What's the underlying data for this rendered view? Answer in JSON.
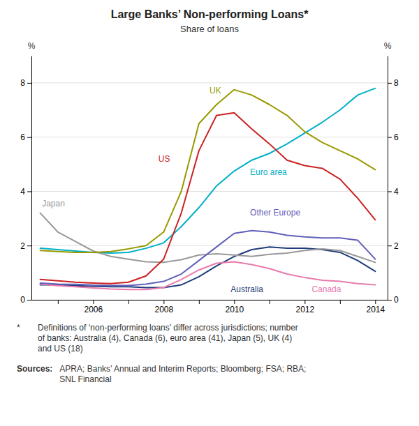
{
  "chart_data": {
    "type": "line",
    "title": "Large Banks’ Non-performing Loans*",
    "subtitle": "Share of loans",
    "ylabel": "%",
    "y2label": "%",
    "x": [
      2004.5,
      2005.0,
      2005.5,
      2006.0,
      2006.5,
      2007.0,
      2007.5,
      2008.0,
      2008.5,
      2009.0,
      2009.5,
      2010.0,
      2010.5,
      2011.0,
      2011.5,
      2012.0,
      2012.5,
      2013.0,
      2013.5,
      2014.0
    ],
    "xlim": [
      2004.25,
      2014.35
    ],
    "xticks": [
      {
        "value": 2005,
        "label": null
      },
      2006,
      {
        "value": 2007,
        "label": null
      },
      2008,
      {
        "value": 2009,
        "label": null
      },
      2010,
      {
        "value": 2011,
        "label": null
      },
      2012,
      {
        "value": 2013,
        "label": null
      },
      2014
    ],
    "ylim": [
      0,
      9
    ],
    "yticks": [
      0,
      2,
      4,
      6,
      8
    ],
    "y2lim": [
      0,
      9
    ],
    "y2ticks": [
      0,
      2,
      4,
      6,
      8
    ],
    "grid": true,
    "series": [
      {
        "name": "Australia",
        "color": "#1f3d7a",
        "values": [
          0.55,
          0.55,
          0.52,
          0.5,
          0.48,
          0.48,
          0.45,
          0.45,
          0.55,
          0.85,
          1.25,
          1.6,
          1.85,
          1.95,
          1.9,
          1.9,
          1.85,
          1.75,
          1.45,
          1.05
        ]
      },
      {
        "name": "Canada",
        "color": "#e87aad",
        "values": [
          0.58,
          0.52,
          0.48,
          0.44,
          0.4,
          0.38,
          0.38,
          0.45,
          0.75,
          1.1,
          1.35,
          1.4,
          1.3,
          1.15,
          0.95,
          0.82,
          0.72,
          0.68,
          0.6,
          0.55
        ]
      },
      {
        "name": "Euro area",
        "color": "#00b0c8",
        "values": [
          1.9,
          1.85,
          1.8,
          1.75,
          1.72,
          1.75,
          1.9,
          2.1,
          2.7,
          3.4,
          4.2,
          4.75,
          5.15,
          5.4,
          5.75,
          6.15,
          6.55,
          7.0,
          7.55,
          7.8
        ]
      },
      {
        "name": "Japan",
        "color": "#999999",
        "values": [
          3.2,
          2.5,
          2.15,
          1.8,
          1.6,
          1.5,
          1.4,
          1.38,
          1.48,
          1.65,
          1.7,
          1.65,
          1.6,
          1.68,
          1.72,
          1.82,
          1.88,
          1.82,
          1.6,
          1.38
        ]
      },
      {
        "name": "Other Europe",
        "color": "#6060bb",
        "values": [
          0.62,
          0.58,
          0.57,
          0.54,
          0.53,
          0.53,
          0.58,
          0.68,
          0.95,
          1.45,
          1.95,
          2.45,
          2.55,
          2.5,
          2.38,
          2.32,
          2.28,
          2.28,
          2.2,
          1.5
        ]
      },
      {
        "name": "UK",
        "color": "#999900",
        "values": [
          1.82,
          1.78,
          1.75,
          1.75,
          1.78,
          1.88,
          2.0,
          2.5,
          4.0,
          6.5,
          7.2,
          7.75,
          7.55,
          7.2,
          6.8,
          6.2,
          5.8,
          5.5,
          5.2,
          4.8
        ]
      },
      {
        "name": "US",
        "color": "#cc2222",
        "values": [
          0.75,
          0.7,
          0.65,
          0.62,
          0.6,
          0.65,
          0.88,
          1.5,
          3.2,
          5.5,
          6.8,
          6.9,
          6.3,
          5.75,
          5.15,
          4.95,
          4.85,
          4.45,
          3.75,
          2.95
        ]
      }
    ],
    "annotations": [
      {
        "text": "Australia",
        "x": 2009.9,
        "y": 0.22,
        "color": "#1f3d7a"
      },
      {
        "text": "Canada",
        "x": 2012.2,
        "y": 0.22,
        "color": "#e87aad"
      },
      {
        "text": "Euro area",
        "x": 2010.45,
        "y": 4.55,
        "color": "#00b0c8"
      },
      {
        "text": "Japan",
        "x": 2004.55,
        "y": 3.4,
        "color": "#999999"
      },
      {
        "text": "Other Europe",
        "x": 2010.45,
        "y": 3.05,
        "color": "#6060bb"
      },
      {
        "text": "UK",
        "x": 2009.3,
        "y": 7.55,
        "color": "#999900"
      },
      {
        "text": "US",
        "x": 2007.85,
        "y": 5.05,
        "color": "#cc2222"
      }
    ],
    "notes": [
      {
        "label": "*",
        "text": [
          "Definitions of ‘non-performing loans’ differ across jurisdictions; number",
          "of banks: Australia (4), Canada (6), euro area (41), Japan (5), UK (4)",
          "and US (18)"
        ]
      },
      {
        "label": "Sources:",
        "text": [
          "APRA; Banks’ Annual and Interim Reports; Bloomberg; FSA; RBA;",
          "SNL Financial"
        ]
      }
    ]
  }
}
